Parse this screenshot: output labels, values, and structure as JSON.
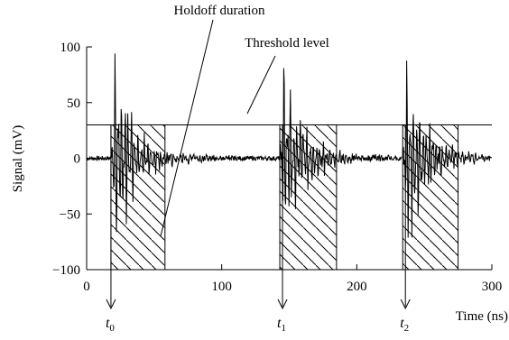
{
  "chart_data": {
    "type": "line",
    "xlabel": "Time (ns)",
    "ylabel": "Signal (mV)",
    "xlim": [
      0,
      300
    ],
    "ylim": [
      -100,
      100
    ],
    "x_ticks": [
      0,
      100,
      200,
      300
    ],
    "y_ticks": [
      -100,
      -50,
      0,
      50,
      100
    ],
    "x_tick_labels": [
      "0",
      "100",
      "200",
      "300"
    ],
    "y_tick_labels": [
      "−100",
      "−50",
      "0",
      "50",
      "100"
    ],
    "grid": false,
    "threshold": {
      "label": "Threshold level",
      "value": 30
    },
    "holdoff": {
      "label": "Holdoff duration",
      "duration_ns": 40
    },
    "triggers": [
      {
        "label": "t",
        "sub": "0",
        "time": 18
      },
      {
        "label": "t",
        "sub": "1",
        "time": 145
      },
      {
        "label": "t",
        "sub": "2",
        "time": 236
      }
    ],
    "pulses": [
      {
        "start": 18,
        "end": 58,
        "peak": 90,
        "trough": -88
      },
      {
        "start": 143,
        "end": 185,
        "peak": 90,
        "trough": -88
      },
      {
        "start": 234,
        "end": 275,
        "peak": 90,
        "trough": -88
      }
    ],
    "noise_amplitude": 2,
    "ringing_amplitude": 16
  }
}
